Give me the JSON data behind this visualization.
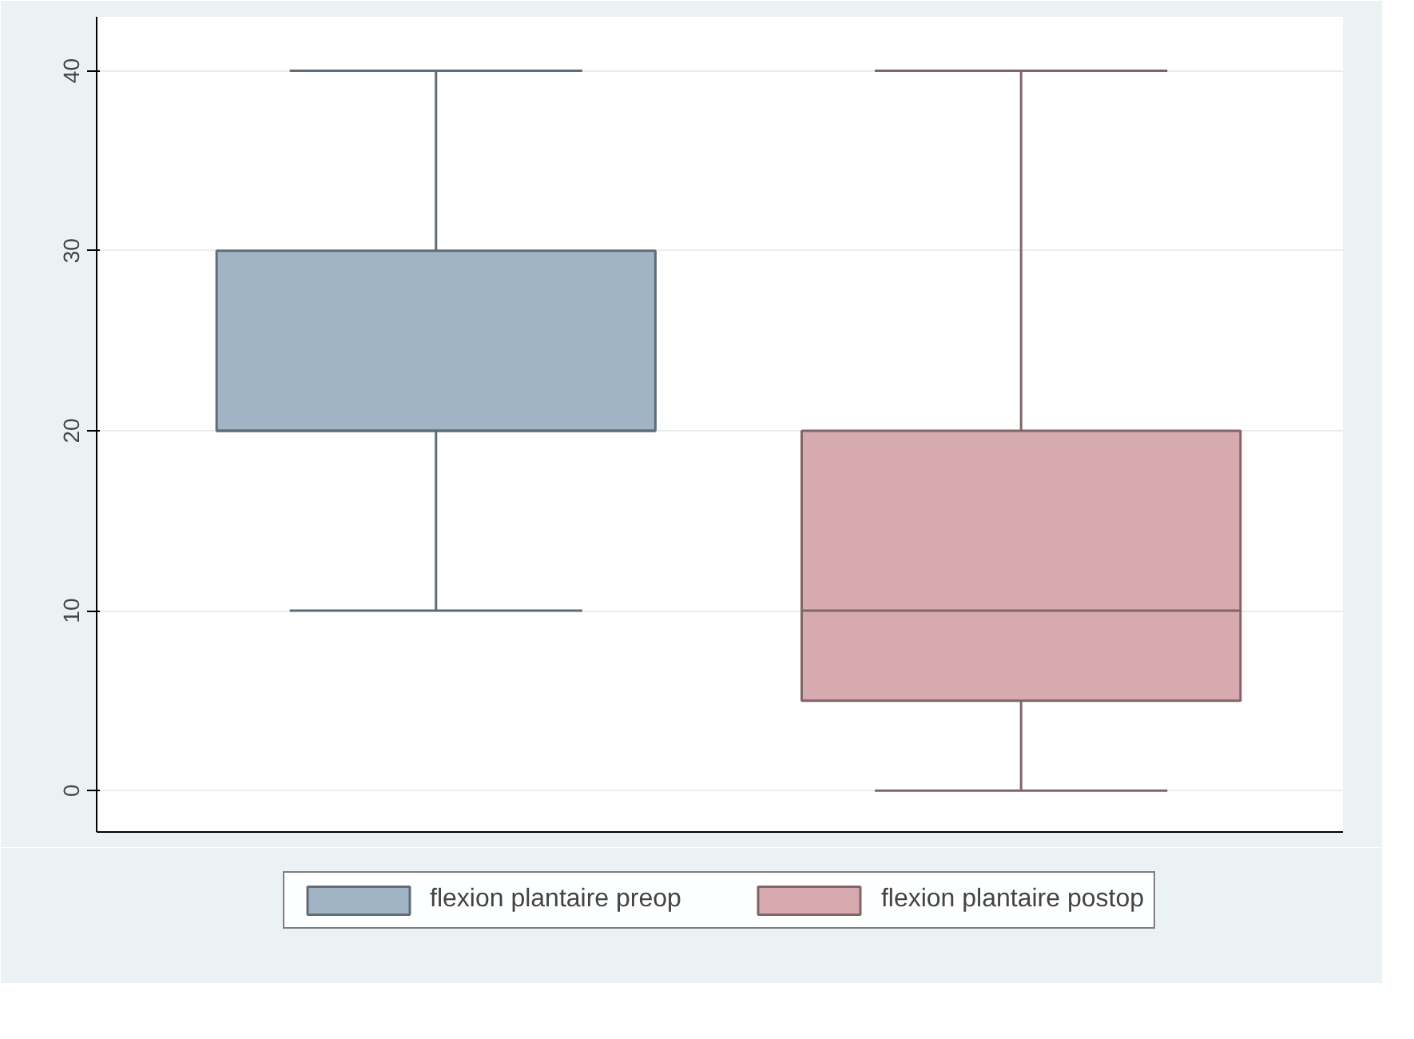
{
  "chart_data": {
    "type": "box",
    "categories": [
      null
    ],
    "series": [
      {
        "name": "flexion plantaire preop",
        "color": "#a0b4c6",
        "boxes": [
          {
            "low": 10,
            "q1": 20,
            "median": 20,
            "q3": 30,
            "high": 40
          }
        ]
      },
      {
        "name": "flexion plantaire postop",
        "color": "#d6aaae",
        "boxes": [
          {
            "low": 0,
            "q1": 5,
            "median": 10,
            "q3": 20,
            "high": 40
          }
        ]
      }
    ],
    "ylim": [
      -2.3,
      43
    ],
    "yticks": [
      0,
      10,
      20,
      30,
      40
    ],
    "grid": "y",
    "legend": "bottom",
    "tick_labels": "y"
  }
}
